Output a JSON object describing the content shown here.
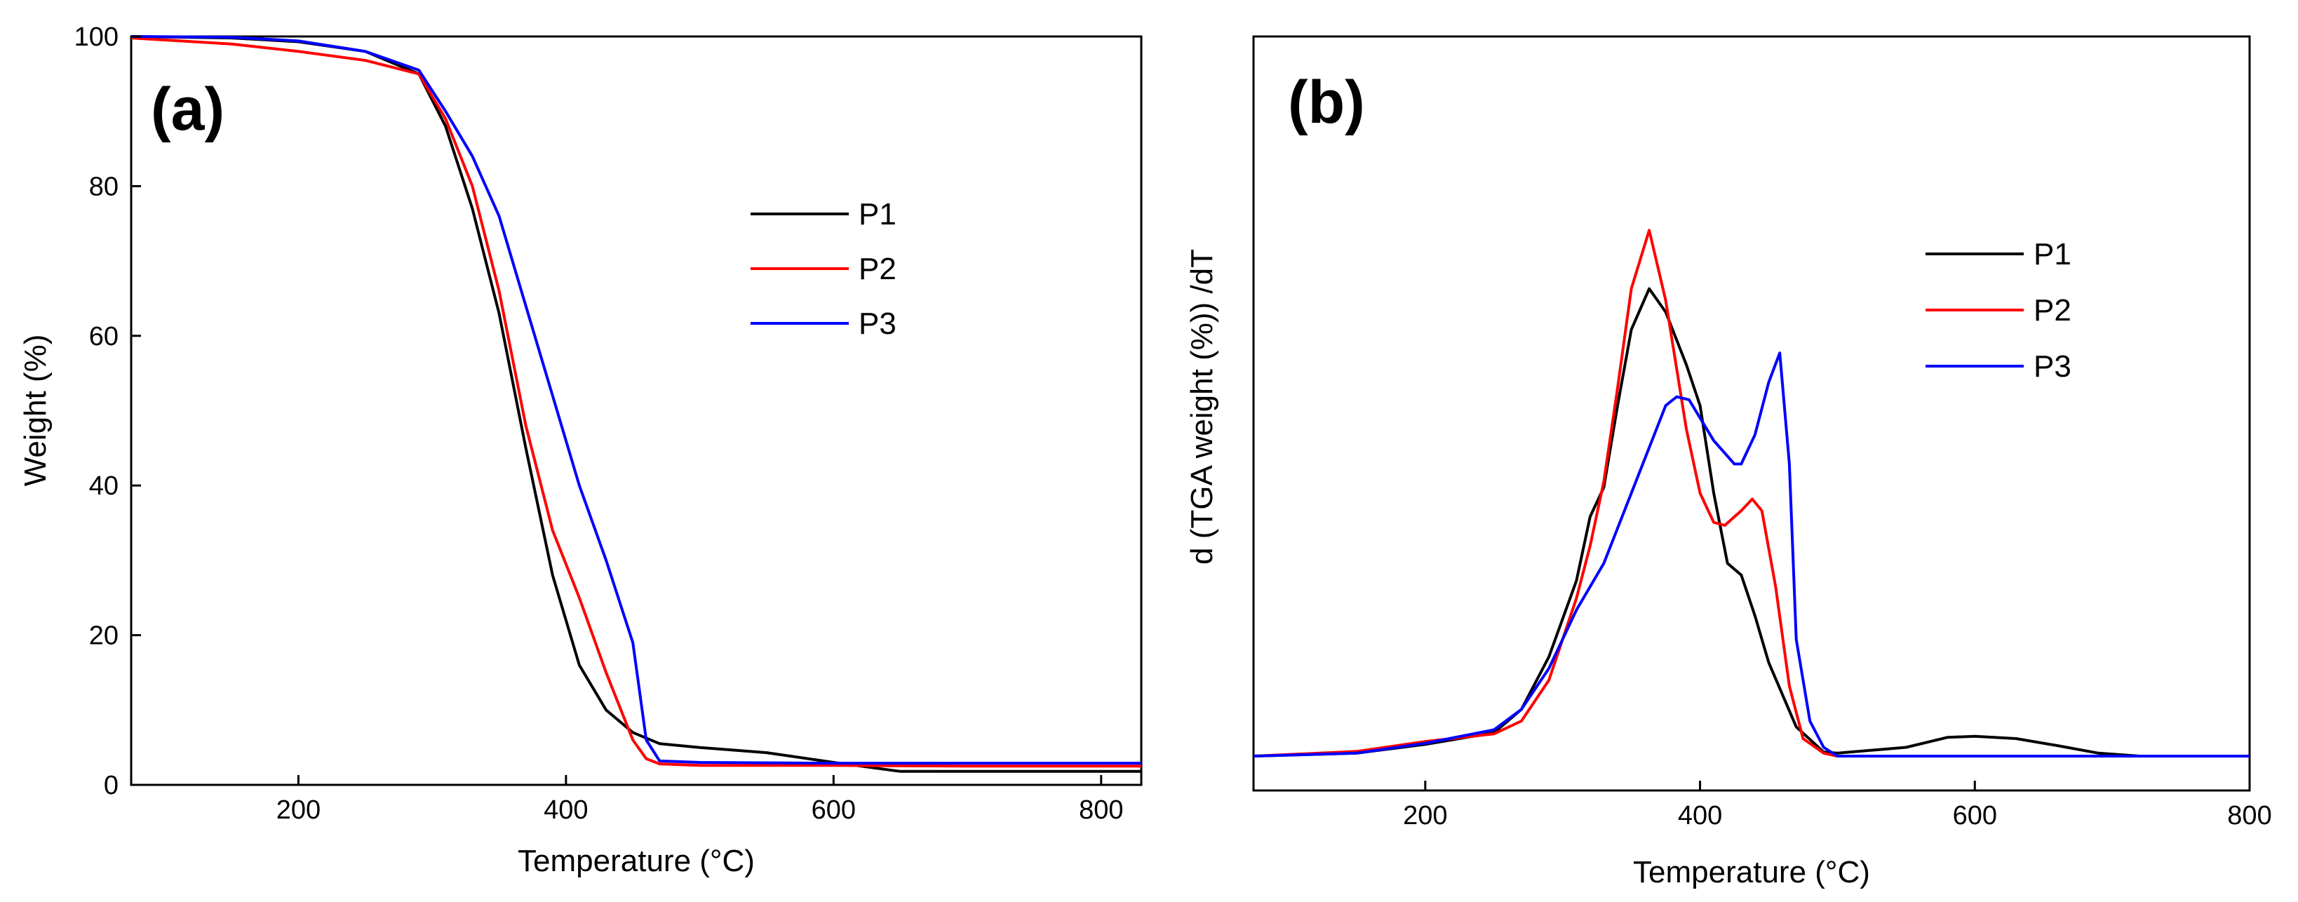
{
  "colors": {
    "P1": "#000000",
    "P2": "#ff0000",
    "P3": "#0000ff",
    "axis": "#000000"
  },
  "chart_data": [
    {
      "panel": "(a)",
      "type": "line",
      "xlabel": "Temperature (°C)",
      "ylabel": "Weight (%)",
      "xlim": [
        75,
        830
      ],
      "ylim": [
        0,
        100
      ],
      "xticks": [
        200,
        400,
        600,
        800
      ],
      "yticks": [
        0,
        20,
        40,
        60,
        80,
        100
      ],
      "legend_position": "upper-right",
      "series": [
        {
          "name": "P1",
          "color": "#000000",
          "x": [
            75,
            150,
            200,
            250,
            290,
            310,
            330,
            350,
            370,
            390,
            410,
            430,
            450,
            470,
            500,
            550,
            600,
            650,
            700,
            750,
            830
          ],
          "y": [
            100,
            99.8,
            99.3,
            98,
            95,
            88,
            77,
            63,
            45,
            28,
            16,
            10,
            7,
            5.5,
            5,
            4.3,
            3,
            1.8,
            1.8,
            1.8,
            1.8
          ]
        },
        {
          "name": "P2",
          "color": "#ff0000",
          "x": [
            75,
            150,
            200,
            250,
            290,
            310,
            330,
            350,
            370,
            390,
            410,
            430,
            450,
            460,
            470,
            500,
            600,
            700,
            830
          ],
          "y": [
            99.8,
            99,
            98,
            96.8,
            95,
            89,
            80,
            66,
            48,
            34,
            25,
            15,
            6,
            3.5,
            2.8,
            2.6,
            2.6,
            2.5,
            2.5
          ]
        },
        {
          "name": "P3",
          "color": "#0000ff",
          "x": [
            75,
            150,
            200,
            250,
            290,
            310,
            330,
            350,
            370,
            390,
            410,
            430,
            450,
            460,
            470,
            500,
            600,
            700,
            830
          ],
          "y": [
            100,
            99.9,
            99.4,
            98,
            95.5,
            90,
            84,
            76,
            64,
            52,
            40,
            30,
            19,
            6,
            3.2,
            3,
            2.9,
            2.9,
            2.9
          ]
        }
      ]
    },
    {
      "panel": "(b)",
      "type": "line",
      "xlabel": "Temperature (°C)",
      "ylabel": "d (TGA weight (%)) /dT",
      "xlim": [
        75,
        800
      ],
      "ylim": [
        0,
        100
      ],
      "xticks": [
        200,
        400,
        600,
        800
      ],
      "yticks": [],
      "legend_position": "right",
      "series": [
        {
          "name": "P1",
          "color": "#000000",
          "x": [
            75,
            150,
            200,
            250,
            270,
            290,
            310,
            320,
            330,
            340,
            350,
            363,
            375,
            390,
            400,
            410,
            420,
            430,
            440,
            450,
            470,
            490,
            500,
            550,
            580,
            600,
            630,
            660,
            690,
            720,
            800
          ],
          "y": [
            0,
            0.5,
            2,
            4,
            8,
            17,
            30,
            41,
            46,
            60,
            73,
            80,
            76,
            67,
            60,
            45,
            33,
            31,
            24,
            16,
            5,
            0.7,
            0.5,
            1.5,
            3.2,
            3.4,
            3,
            1.8,
            0.5,
            0,
            0
          ]
        },
        {
          "name": "P2",
          "color": "#ff0000",
          "x": [
            75,
            150,
            200,
            250,
            270,
            290,
            300,
            310,
            320,
            330,
            340,
            350,
            363,
            375,
            390,
            400,
            410,
            418,
            430,
            438,
            445,
            455,
            465,
            475,
            490,
            500,
            600,
            700,
            800
          ],
          "y": [
            0,
            0.8,
            2.5,
            3.8,
            6,
            13,
            20,
            27,
            36,
            47,
            63,
            80,
            90,
            78,
            56,
            45,
            40,
            39.5,
            42,
            44,
            42,
            29,
            12,
            3,
            0.5,
            0,
            0,
            0,
            0
          ]
        },
        {
          "name": "P3",
          "color": "#0000ff",
          "x": [
            75,
            150,
            200,
            250,
            270,
            290,
            310,
            330,
            350,
            365,
            375,
            383,
            392,
            410,
            425,
            430,
            440,
            450,
            458,
            465,
            470,
            480,
            490,
            500,
            600,
            700,
            800
          ],
          "y": [
            0,
            0.5,
            2.2,
            4.5,
            8,
            15,
            25,
            33,
            45,
            54,
            60,
            61.5,
            61,
            54,
            50,
            50,
            55,
            64,
            69,
            50,
            20,
            6,
            1.5,
            0,
            0,
            0,
            0
          ]
        }
      ]
    }
  ]
}
